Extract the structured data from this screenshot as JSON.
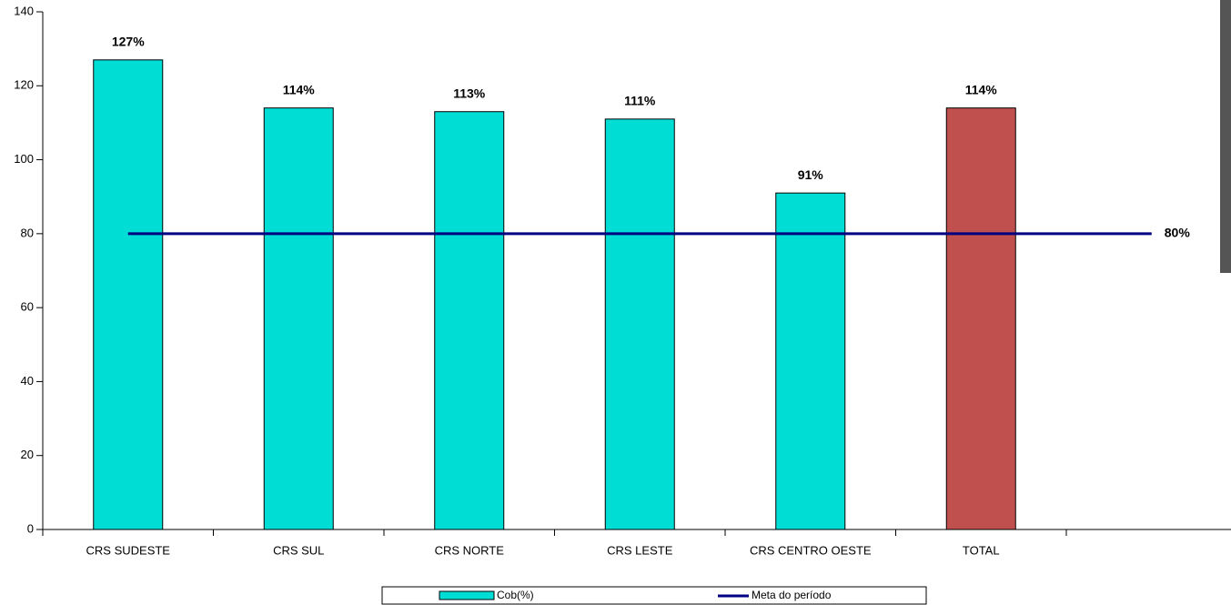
{
  "chart_data": {
    "type": "bar",
    "categories": [
      "CRS SUDESTE",
      "CRS SUL",
      "CRS NORTE",
      "CRS LESTE",
      "CRS CENTRO OESTE",
      "TOTAL",
      null
    ],
    "series": [
      {
        "name": "Cob(%)",
        "type": "bar",
        "color": "#00ddd5",
        "colors": [
          "#00ddd5",
          "#00ddd5",
          "#00ddd5",
          "#00ddd5",
          "#00ddd5",
          "#c0504d",
          null
        ],
        "values": [
          127,
          114,
          113,
          111,
          91,
          114,
          null
        ],
        "value_labels": [
          "127%",
          "114%",
          "113%",
          "111%",
          "91%",
          "114%",
          null
        ]
      },
      {
        "name": "Meta do período",
        "type": "line",
        "color": "#000080",
        "values": [
          80,
          80,
          80,
          80,
          80,
          80,
          80
        ],
        "value_labels": [
          null,
          null,
          null,
          null,
          null,
          null,
          "80%"
        ]
      }
    ],
    "ylim": [
      0,
      140
    ],
    "yticks": [
      0,
      20,
      40,
      60,
      80,
      100,
      120,
      140
    ],
    "legend": "bottom"
  }
}
